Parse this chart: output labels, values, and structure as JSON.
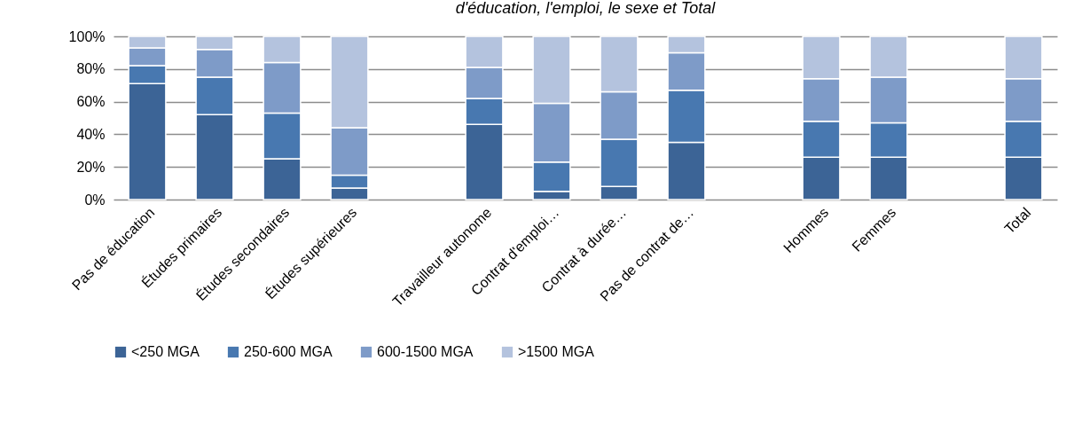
{
  "chart_data": {
    "type": "bar",
    "title": "d'éducation, l'emploi, le sexe et Total",
    "stacked": true,
    "categories": [
      "Pas de éducation",
      "Études primaires",
      "Études secondaires",
      "Études supérieures",
      null,
      "Travailleur autonome",
      "Contrat d'emploi…",
      "Contrat à durée…",
      "Pas de contrat de…",
      null,
      "Hommes",
      "Femmes",
      null,
      "Total"
    ],
    "series": [
      {
        "name": "<250 MGA",
        "color": "#3c6496",
        "values": [
          71,
          52,
          25,
          7,
          null,
          46,
          5,
          8,
          35,
          null,
          26,
          26,
          null,
          26
        ]
      },
      {
        "name": "250-600 MGA",
        "color": "#4878b0",
        "values": [
          11,
          23,
          28,
          8,
          null,
          16,
          18,
          29,
          32,
          null,
          22,
          21,
          null,
          22
        ]
      },
      {
        "name": "600-1500 MGA",
        "color": "#7e9bc8",
        "values": [
          11,
          17,
          31,
          29,
          null,
          19,
          36,
          29,
          23,
          null,
          26,
          28,
          null,
          26
        ]
      },
      {
        "name": ">1500 MGA",
        "color": "#b4c3de",
        "values": [
          7,
          8,
          16,
          56,
          null,
          19,
          41,
          34,
          10,
          null,
          26,
          25,
          null,
          26
        ]
      }
    ],
    "ylim": [
      0,
      100
    ],
    "yticks": [
      {
        "value": 0,
        "label": "0%"
      },
      {
        "value": 20,
        "label": "20%"
      },
      {
        "value": 40,
        "label": "40%"
      },
      {
        "value": 60,
        "label": "60%"
      },
      {
        "value": 80,
        "label": "80%"
      },
      {
        "value": 100,
        "label": "100%"
      }
    ],
    "grid": "y",
    "legend": "bottom"
  }
}
